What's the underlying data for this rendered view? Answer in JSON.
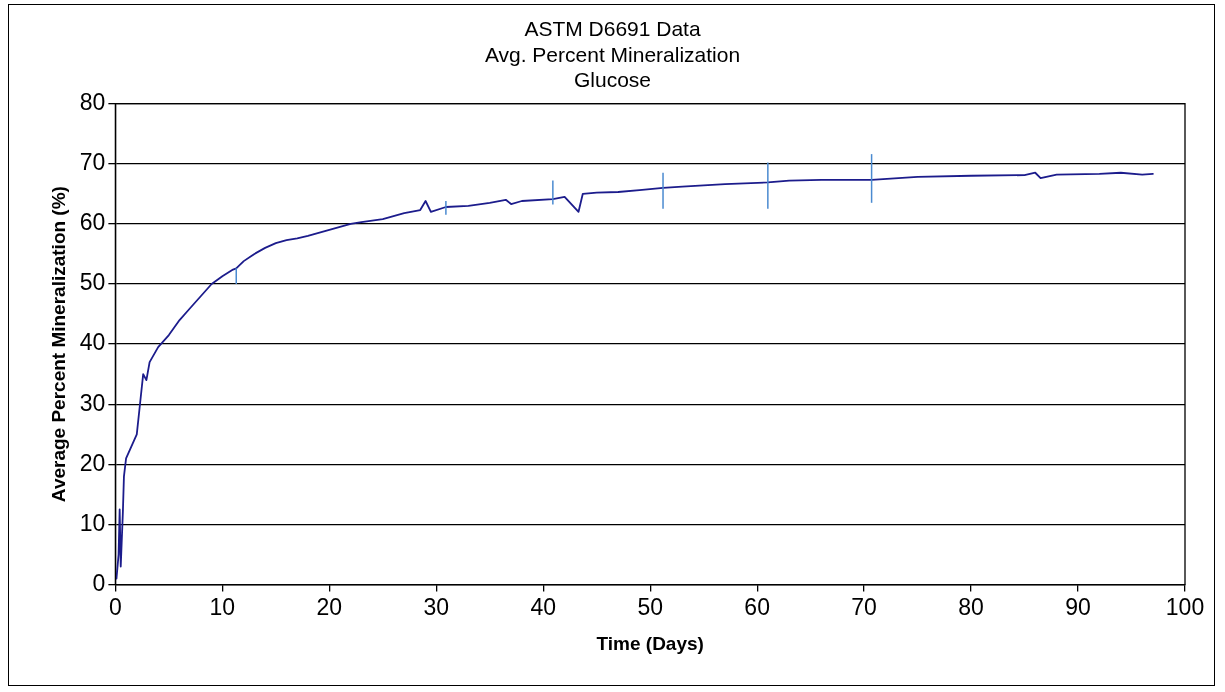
{
  "chart_data": {
    "type": "line",
    "title": "ASTM D6691 Data\nAvg. Percent Mineralization\nGlucose",
    "xlabel": "Time (Days)",
    "ylabel": "Average Percent Mineralization (%)",
    "xlim": [
      0,
      100
    ],
    "xticks": [
      0,
      10,
      20,
      30,
      40,
      50,
      60,
      70,
      80,
      90,
      100
    ],
    "ylim": [
      0,
      80
    ],
    "yticks": [
      0,
      10,
      20,
      30,
      40,
      50,
      60,
      70,
      80
    ],
    "grid": "y",
    "marker": "none",
    "line_style": "solid",
    "series": [
      {
        "color": "#1c1c8c",
        "x": [
          0.1,
          0.3,
          0.4,
          0.5,
          0.7,
          0.8,
          1,
          1.5,
          2,
          2.3,
          2.6,
          2.9,
          3.2,
          4,
          5,
          6,
          7,
          8,
          9,
          10,
          11,
          11.3,
          12,
          13,
          14,
          15,
          16,
          17,
          18,
          19,
          20,
          21,
          22,
          23,
          25,
          27,
          28.5,
          29,
          29.5,
          30.9,
          33,
          35,
          36.5,
          37,
          38,
          40.9,
          42,
          43.3,
          43.7,
          45,
          47,
          49,
          51.2,
          53,
          55,
          57,
          61,
          63,
          66,
          70.7,
          75,
          80,
          85,
          86,
          86.5,
          88,
          92,
          94,
          96,
          97
        ],
        "values": [
          1,
          5,
          12.5,
          3,
          12,
          18,
          21,
          23,
          25,
          30,
          35,
          34,
          37,
          39.5,
          41.5,
          44,
          46,
          48,
          50,
          51.3,
          52.4,
          52.6,
          53.8,
          55,
          56,
          56.8,
          57.3,
          57.6,
          58,
          58.5,
          59,
          59.5,
          60,
          60.3,
          60.8,
          61.8,
          62.3,
          63.8,
          62,
          62.8,
          63,
          63.5,
          64,
          63.3,
          63.8,
          64.1,
          64.5,
          62,
          65,
          65.2,
          65.3,
          65.6,
          66,
          66.2,
          66.4,
          66.6,
          66.9,
          67.2,
          67.3,
          67.3,
          67.8,
          68,
          68.1,
          68.5,
          67.6,
          68.2,
          68.3,
          68.5,
          68.2,
          68.3
        ],
        "errors": [
          null,
          null,
          null,
          null,
          null,
          null,
          null,
          null,
          null,
          null,
          null,
          null,
          null,
          null,
          null,
          null,
          null,
          null,
          null,
          null,
          null,
          [
            50,
            52.6
          ],
          null,
          null,
          null,
          null,
          null,
          null,
          null,
          null,
          null,
          null,
          null,
          null,
          null,
          null,
          null,
          null,
          null,
          [
            61.5,
            63.8
          ],
          null,
          null,
          null,
          null,
          null,
          [
            63.2,
            67.2
          ],
          null,
          null,
          null,
          null,
          null,
          null,
          [
            62.5,
            68.5
          ],
          null,
          null,
          null,
          [
            62.5,
            70.2
          ],
          null,
          null,
          [
            63.5,
            71.6
          ],
          null,
          null,
          null,
          null,
          null,
          null,
          null,
          null,
          null,
          null
        ]
      }
    ]
  }
}
